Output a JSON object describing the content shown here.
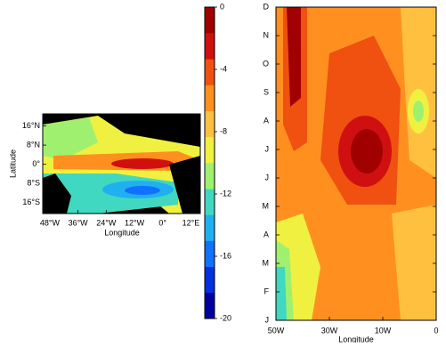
{
  "chart_data": [
    {
      "type": "contour-map",
      "x_label": "Longitude",
      "y_label": "Latitude",
      "xlim": [
        -51,
        16
      ],
      "ylim": [
        -20.5,
        21
      ],
      "xticks": [
        {
          "value": -48,
          "label": "48°W"
        },
        {
          "value": -36,
          "label": "36°W"
        },
        {
          "value": -24,
          "label": "24°W"
        },
        {
          "value": -12,
          "label": "12°W"
        },
        {
          "value": 0,
          "label": "0°"
        },
        {
          "value": 12,
          "label": "12°E"
        }
      ],
      "yticks": [
        {
          "value": 16,
          "label": "16°N"
        },
        {
          "value": 8,
          "label": "8°N"
        },
        {
          "value": 0,
          "label": "0°"
        },
        {
          "value": -8,
          "label": "8°S"
        },
        {
          "value": -16,
          "label": "16°S"
        }
      ]
    },
    {
      "type": "colorbar",
      "ylim": [
        -20,
        0
      ],
      "yticks": [
        0,
        -4,
        -8,
        -12,
        -16,
        -20
      ],
      "colors": [
        "#00009f",
        "#0030e0",
        "#1070ff",
        "#20b0f0",
        "#40d8c0",
        "#a0f070",
        "#f0f040",
        "#ffc040",
        "#ff9020",
        "#f05010",
        "#d01010",
        "#a00000"
      ]
    },
    {
      "type": "hovmoller",
      "x_label": "Longitude",
      "xcategories": [
        "50W",
        "30W",
        "10W",
        "0"
      ],
      "categories": [
        "J",
        "F",
        "M",
        "A",
        "M",
        "J",
        "J",
        "A",
        "S",
        "O",
        "N",
        "D"
      ]
    }
  ]
}
